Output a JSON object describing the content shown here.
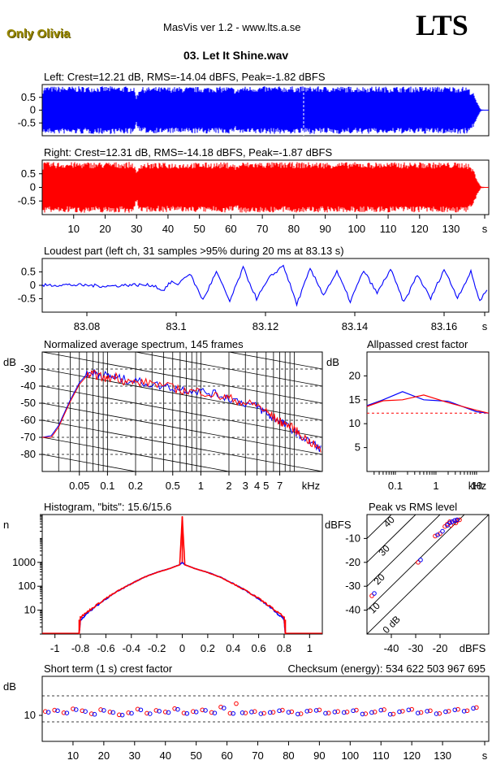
{
  "header": {
    "brand": "Only Olivia",
    "app": "MasVis ver 1.2 - www.lts.a.se",
    "logo": "LTS",
    "file": "03. Let It Shine.wav",
    "colors": {
      "brand": "#9a8a00",
      "left": "#0000ff",
      "right": "#ff0000"
    }
  },
  "chart_data": [
    {
      "id": "left_waveform",
      "type": "area",
      "title": "Left: Crest=12.21 dB, RMS=-14.04 dBFS, Peak=-1.82 dBFS",
      "color": "#0000ff",
      "ylim": [
        -1,
        1
      ],
      "yticks": [
        "0.5",
        "0",
        "-0.5"
      ],
      "marker_x": 83.13,
      "envelope": [
        [
          0.0,
          0.4
        ],
        [
          0.3,
          0.93
        ],
        [
          29,
          0.93
        ],
        [
          30,
          0.55
        ],
        [
          31,
          0.9
        ],
        [
          60,
          0.92
        ],
        [
          62,
          0.8
        ],
        [
          63,
          0.93
        ],
        [
          135,
          0.92
        ],
        [
          137,
          0.7
        ],
        [
          138.5,
          0.25
        ],
        [
          139.5,
          0.03
        ],
        [
          142,
          0.0
        ]
      ]
    },
    {
      "id": "right_waveform",
      "type": "area",
      "title": "Right: Crest=12.31 dB, RMS=-14.18 dBFS, Peak=-1.87 dBFS",
      "color": "#ff0000",
      "ylim": [
        -1,
        1
      ],
      "yticks": [
        "0.5",
        "0",
        "-0.5"
      ],
      "xticks": [
        "10",
        "20",
        "30",
        "40",
        "50",
        "60",
        "70",
        "80",
        "90",
        "100",
        "110",
        "120",
        "130",
        "s"
      ],
      "envelope": [
        [
          0.0,
          0.4
        ],
        [
          0.3,
          0.93
        ],
        [
          29,
          0.93
        ],
        [
          30,
          0.55
        ],
        [
          31,
          0.9
        ],
        [
          60,
          0.92
        ],
        [
          62,
          0.8
        ],
        [
          63,
          0.93
        ],
        [
          135,
          0.92
        ],
        [
          137,
          0.7
        ],
        [
          138.5,
          0.25
        ],
        [
          139.5,
          0.03
        ],
        [
          142,
          0.0
        ]
      ]
    },
    {
      "id": "loudest_part",
      "type": "line",
      "title": "Loudest part (left  ch, 31 samples >95% during 20 ms at 83.13 s)",
      "color": "#0000ff",
      "xlim": [
        83.07,
        83.17
      ],
      "ylim": [
        -1,
        1
      ],
      "yticks": [
        "0.5",
        "0",
        "-0.5"
      ],
      "xticks": [
        "83.08",
        "83.1",
        "83.12",
        "83.14",
        "83.16",
        "s"
      ],
      "x": [
        83.07,
        83.075,
        83.08,
        83.085,
        83.09,
        83.095,
        83.097,
        83.099,
        83.1,
        83.103,
        83.106,
        83.109,
        83.112,
        83.115,
        83.118,
        83.121,
        83.124,
        83.127,
        83.13,
        83.133,
        83.136,
        83.139,
        83.142,
        83.145,
        83.148,
        83.151,
        83.154,
        83.157,
        83.16,
        83.163,
        83.166,
        83.168,
        83.17
      ],
      "y": [
        0.0,
        0.02,
        0.0,
        -0.03,
        0.02,
        0.0,
        -0.2,
        0.15,
        0.0,
        0.45,
        -0.55,
        0.5,
        -0.6,
        0.65,
        -0.5,
        0.3,
        0.75,
        -0.7,
        0.6,
        -0.35,
        0.5,
        -0.6,
        0.55,
        -0.3,
        0.6,
        -0.65,
        0.4,
        -0.5,
        0.6,
        -0.45,
        0.5,
        -0.6,
        0.0
      ]
    },
    {
      "id": "spectrum",
      "type": "line",
      "title": "Normalized average spectrum, 145 frames",
      "ylabel": "dB",
      "xlabel": "kHz",
      "x_scale": "log",
      "xlim": [
        0.02,
        20
      ],
      "ylim": [
        -90,
        -20
      ],
      "yticks": [
        "-30",
        "-40",
        "-50",
        "-60",
        "-70",
        "-80"
      ],
      "xticks": [
        {
          "v": 0.05,
          "label": "0.05"
        },
        {
          "v": 0.1,
          "label": "0.1"
        },
        {
          "v": 0.2,
          "label": "0.2"
        },
        {
          "v": 0.5,
          "label": "0.5"
        },
        {
          "v": 1,
          "label": "1"
        },
        {
          "v": 2,
          "label": "2"
        },
        {
          "v": 3,
          "label": "3"
        },
        {
          "v": 4,
          "label": "4"
        },
        {
          "v": 5,
          "label": "5"
        },
        {
          "v": 7,
          "label": "7"
        }
      ],
      "series": [
        {
          "color": "#0000ff",
          "x": [
            0.02,
            0.025,
            0.03,
            0.04,
            0.05,
            0.06,
            0.07,
            0.08,
            0.1,
            0.12,
            0.15,
            0.2,
            0.3,
            0.5,
            0.7,
            1,
            1.5,
            2,
            3,
            4,
            5,
            6,
            7,
            8,
            10,
            12,
            15,
            20
          ],
          "y": [
            -70,
            -69,
            -63,
            -48,
            -38,
            -33,
            -32,
            -33,
            -34,
            -35,
            -36,
            -37,
            -39,
            -41,
            -42,
            -43,
            -45,
            -47,
            -50,
            -52,
            -56,
            -59,
            -60,
            -63,
            -66,
            -70,
            -73,
            -77
          ]
        },
        {
          "color": "#ff0000",
          "x": [
            0.02,
            0.025,
            0.03,
            0.04,
            0.05,
            0.06,
            0.07,
            0.08,
            0.1,
            0.12,
            0.15,
            0.2,
            0.3,
            0.5,
            0.7,
            1,
            1.5,
            2,
            3,
            4,
            5,
            6,
            7,
            8,
            10,
            12,
            15,
            20
          ],
          "y": [
            -70,
            -70,
            -64,
            -49,
            -39,
            -34,
            -33,
            -34,
            -36,
            -34,
            -37,
            -38,
            -38,
            -41,
            -43,
            -43,
            -46,
            -47,
            -50,
            -51,
            -55,
            -58,
            -61,
            -62,
            -65,
            -69,
            -73,
            -78
          ]
        }
      ]
    },
    {
      "id": "allpassed_crest",
      "type": "line",
      "title": "Allpassed crest factor",
      "ylabel": "dB",
      "xlabel": "kHz",
      "x_scale": "log",
      "xlim": [
        0.02,
        20
      ],
      "ylim": [
        0,
        25
      ],
      "yticks": [
        "20",
        "15",
        "10",
        "5"
      ],
      "xticks": [
        {
          "v": 0.1,
          "label": "0.1"
        },
        {
          "v": 1,
          "label": "1"
        },
        {
          "v": 10,
          "label": "10"
        }
      ],
      "reference": 12.21,
      "reference_color": "#ff0000",
      "series": [
        {
          "color": "#0000ff",
          "x": [
            0.02,
            0.05,
            0.15,
            0.5,
            2,
            10,
            20
          ],
          "y": [
            13.8,
            15.0,
            16.7,
            15.0,
            14.7,
            12.5,
            12.2
          ]
        },
        {
          "color": "#ff0000",
          "x": [
            0.02,
            0.05,
            0.15,
            0.5,
            2,
            10,
            20
          ],
          "y": [
            13.6,
            14.8,
            15.0,
            16.0,
            14.4,
            12.8,
            12.2
          ]
        }
      ]
    },
    {
      "id": "histogram",
      "type": "line",
      "title": "Histogram, \"bits\": 15.6/15.6",
      "ylabel": "n",
      "y_scale": "log",
      "xlim": [
        -1.1,
        1.1
      ],
      "ylim": [
        1,
        100000
      ],
      "yticks": [
        {
          "v": 1000,
          "label": "1000"
        },
        {
          "v": 100,
          "label": "100"
        },
        {
          "v": 10,
          "label": "10"
        }
      ],
      "xticks": [
        "-1",
        "-0.8",
        "-0.6",
        "-0.4",
        "-0.2",
        "0",
        "0.2",
        "0.4",
        "0.6",
        "0.8",
        "1"
      ],
      "series": [
        {
          "color": "#0000ff",
          "x": [
            -0.81,
            -0.8,
            -0.7,
            -0.6,
            -0.5,
            -0.4,
            -0.3,
            -0.2,
            -0.1,
            -0.02,
            0,
            0.02,
            0.1,
            0.2,
            0.3,
            0.4,
            0.5,
            0.6,
            0.7,
            0.8,
            0.81
          ],
          "y": [
            1,
            4,
            12,
            30,
            65,
            130,
            240,
            380,
            550,
            800,
            1000,
            800,
            550,
            380,
            240,
            130,
            65,
            30,
            12,
            4,
            1
          ]
        },
        {
          "color": "#ff0000",
          "x": [
            -0.81,
            -0.8,
            -0.7,
            -0.6,
            -0.5,
            -0.4,
            -0.3,
            -0.2,
            -0.1,
            -0.02,
            0,
            0.02,
            0.1,
            0.2,
            0.3,
            0.4,
            0.5,
            0.6,
            0.7,
            0.8,
            0.81
          ],
          "y": [
            1,
            5,
            13,
            31,
            66,
            128,
            238,
            378,
            548,
            790,
            80000,
            790,
            548,
            378,
            238,
            128,
            66,
            31,
            13,
            5,
            1
          ]
        }
      ]
    },
    {
      "id": "peak_vs_rms",
      "type": "scatter",
      "title": "Peak vs RMS level",
      "ylabel": "dBFS",
      "xlabel": "dBFS",
      "xlim": [
        -50,
        0
      ],
      "ylim": [
        -50,
        0
      ],
      "yticks": [
        "-10",
        "-20",
        "-30",
        "-40"
      ],
      "xticks": [
        "-40",
        "-30",
        "-20"
      ],
      "crest_labels": [
        "40",
        "30",
        "20",
        "10",
        "0 dB"
      ],
      "series": [
        {
          "color": "#ff0000",
          "x": [
            -48,
            -29,
            -22,
            -20,
            -18,
            -17,
            -16,
            -15,
            -14,
            -13,
            -12,
            -13.5,
            -15.5
          ],
          "y": [
            -34,
            -20,
            -9,
            -8,
            -5,
            -4,
            -3,
            -3,
            -2.5,
            -2.5,
            -2.2,
            -3.5,
            -4.5
          ]
        },
        {
          "color": "#0000ff",
          "x": [
            -47,
            -28,
            -21,
            -19,
            -17,
            -16,
            -15,
            -14,
            -13
          ],
          "y": [
            -33,
            -19,
            -8.5,
            -7,
            -4.5,
            -3.5,
            -3,
            -2.5,
            -2.2
          ]
        }
      ]
    },
    {
      "id": "short_term_crest",
      "type": "scatter",
      "title": "Short term (1 s) crest factor",
      "checksum_label": "Checksum (energy):",
      "checksum": "534 622 503 967 695",
      "ylabel": "dB",
      "xlim": [
        0,
        145
      ],
      "ylim": [
        0,
        25
      ],
      "yticks": [
        {
          "v": 10,
          "label": "10"
        }
      ],
      "dashed_levels": [
        7.5,
        17.5
      ],
      "xticks": [
        "10",
        "20",
        "30",
        "40",
        "50",
        "60",
        "70",
        "80",
        "90",
        "100",
        "110",
        "120",
        "130",
        "s"
      ],
      "series": [
        {
          "color": "#ff0000",
          "x": [
            1,
            4,
            7,
            10,
            13,
            16,
            19,
            22,
            25,
            28,
            31,
            34,
            37,
            40,
            43,
            46,
            49,
            52,
            55,
            58,
            61,
            63,
            66,
            69,
            72,
            75,
            78,
            81,
            84,
            87,
            90,
            93,
            96,
            99,
            102,
            105,
            108,
            111,
            114,
            117,
            120,
            123,
            126,
            129,
            132,
            135,
            138,
            141
          ],
          "y": [
            11.5,
            12.0,
            11.0,
            12.5,
            11.8,
            10.6,
            12.2,
            11.3,
            10.2,
            11.0,
            12.4,
            10.8,
            11.9,
            11.3,
            12.6,
            10.9,
            11.5,
            12.1,
            11.1,
            13.2,
            10.8,
            14.5,
            10.9,
            11.5,
            10.8,
            11.2,
            12.0,
            11.4,
            10.6,
            11.8,
            12.1,
            10.9,
            11.5,
            11.3,
            12.0,
            10.6,
            11.3,
            12.2,
            10.5,
            11.6,
            12.3,
            11.1,
            11.8,
            10.7,
            11.6,
            12.3,
            11.8,
            13.0
          ]
        },
        {
          "color": "#0000ff",
          "x": [
            2,
            5,
            8,
            11,
            14,
            17,
            20,
            23,
            26,
            29,
            32,
            35,
            38,
            41,
            44,
            47,
            50,
            53,
            56,
            59,
            62,
            65,
            68,
            71,
            74,
            77,
            80,
            83,
            86,
            89,
            92,
            95,
            98,
            101,
            104,
            107,
            110,
            113,
            116,
            119,
            122,
            125,
            128,
            131,
            134,
            137,
            140
          ],
          "y": [
            11.2,
            11.8,
            10.9,
            12.2,
            11.5,
            10.4,
            11.9,
            11.1,
            10.1,
            10.8,
            12.1,
            10.6,
            11.6,
            11.1,
            12.3,
            10.7,
            11.3,
            11.9,
            10.9,
            12.8,
            10.7,
            11.0,
            11.3,
            10.6,
            11.1,
            11.8,
            11.2,
            10.5,
            11.6,
            11.9,
            10.8,
            11.3,
            11.1,
            11.8,
            10.5,
            11.1,
            12.0,
            10.4,
            11.4,
            12.1,
            10.9,
            11.6,
            10.6,
            11.4,
            12.1,
            11.6,
            12.7
          ]
        }
      ]
    }
  ]
}
